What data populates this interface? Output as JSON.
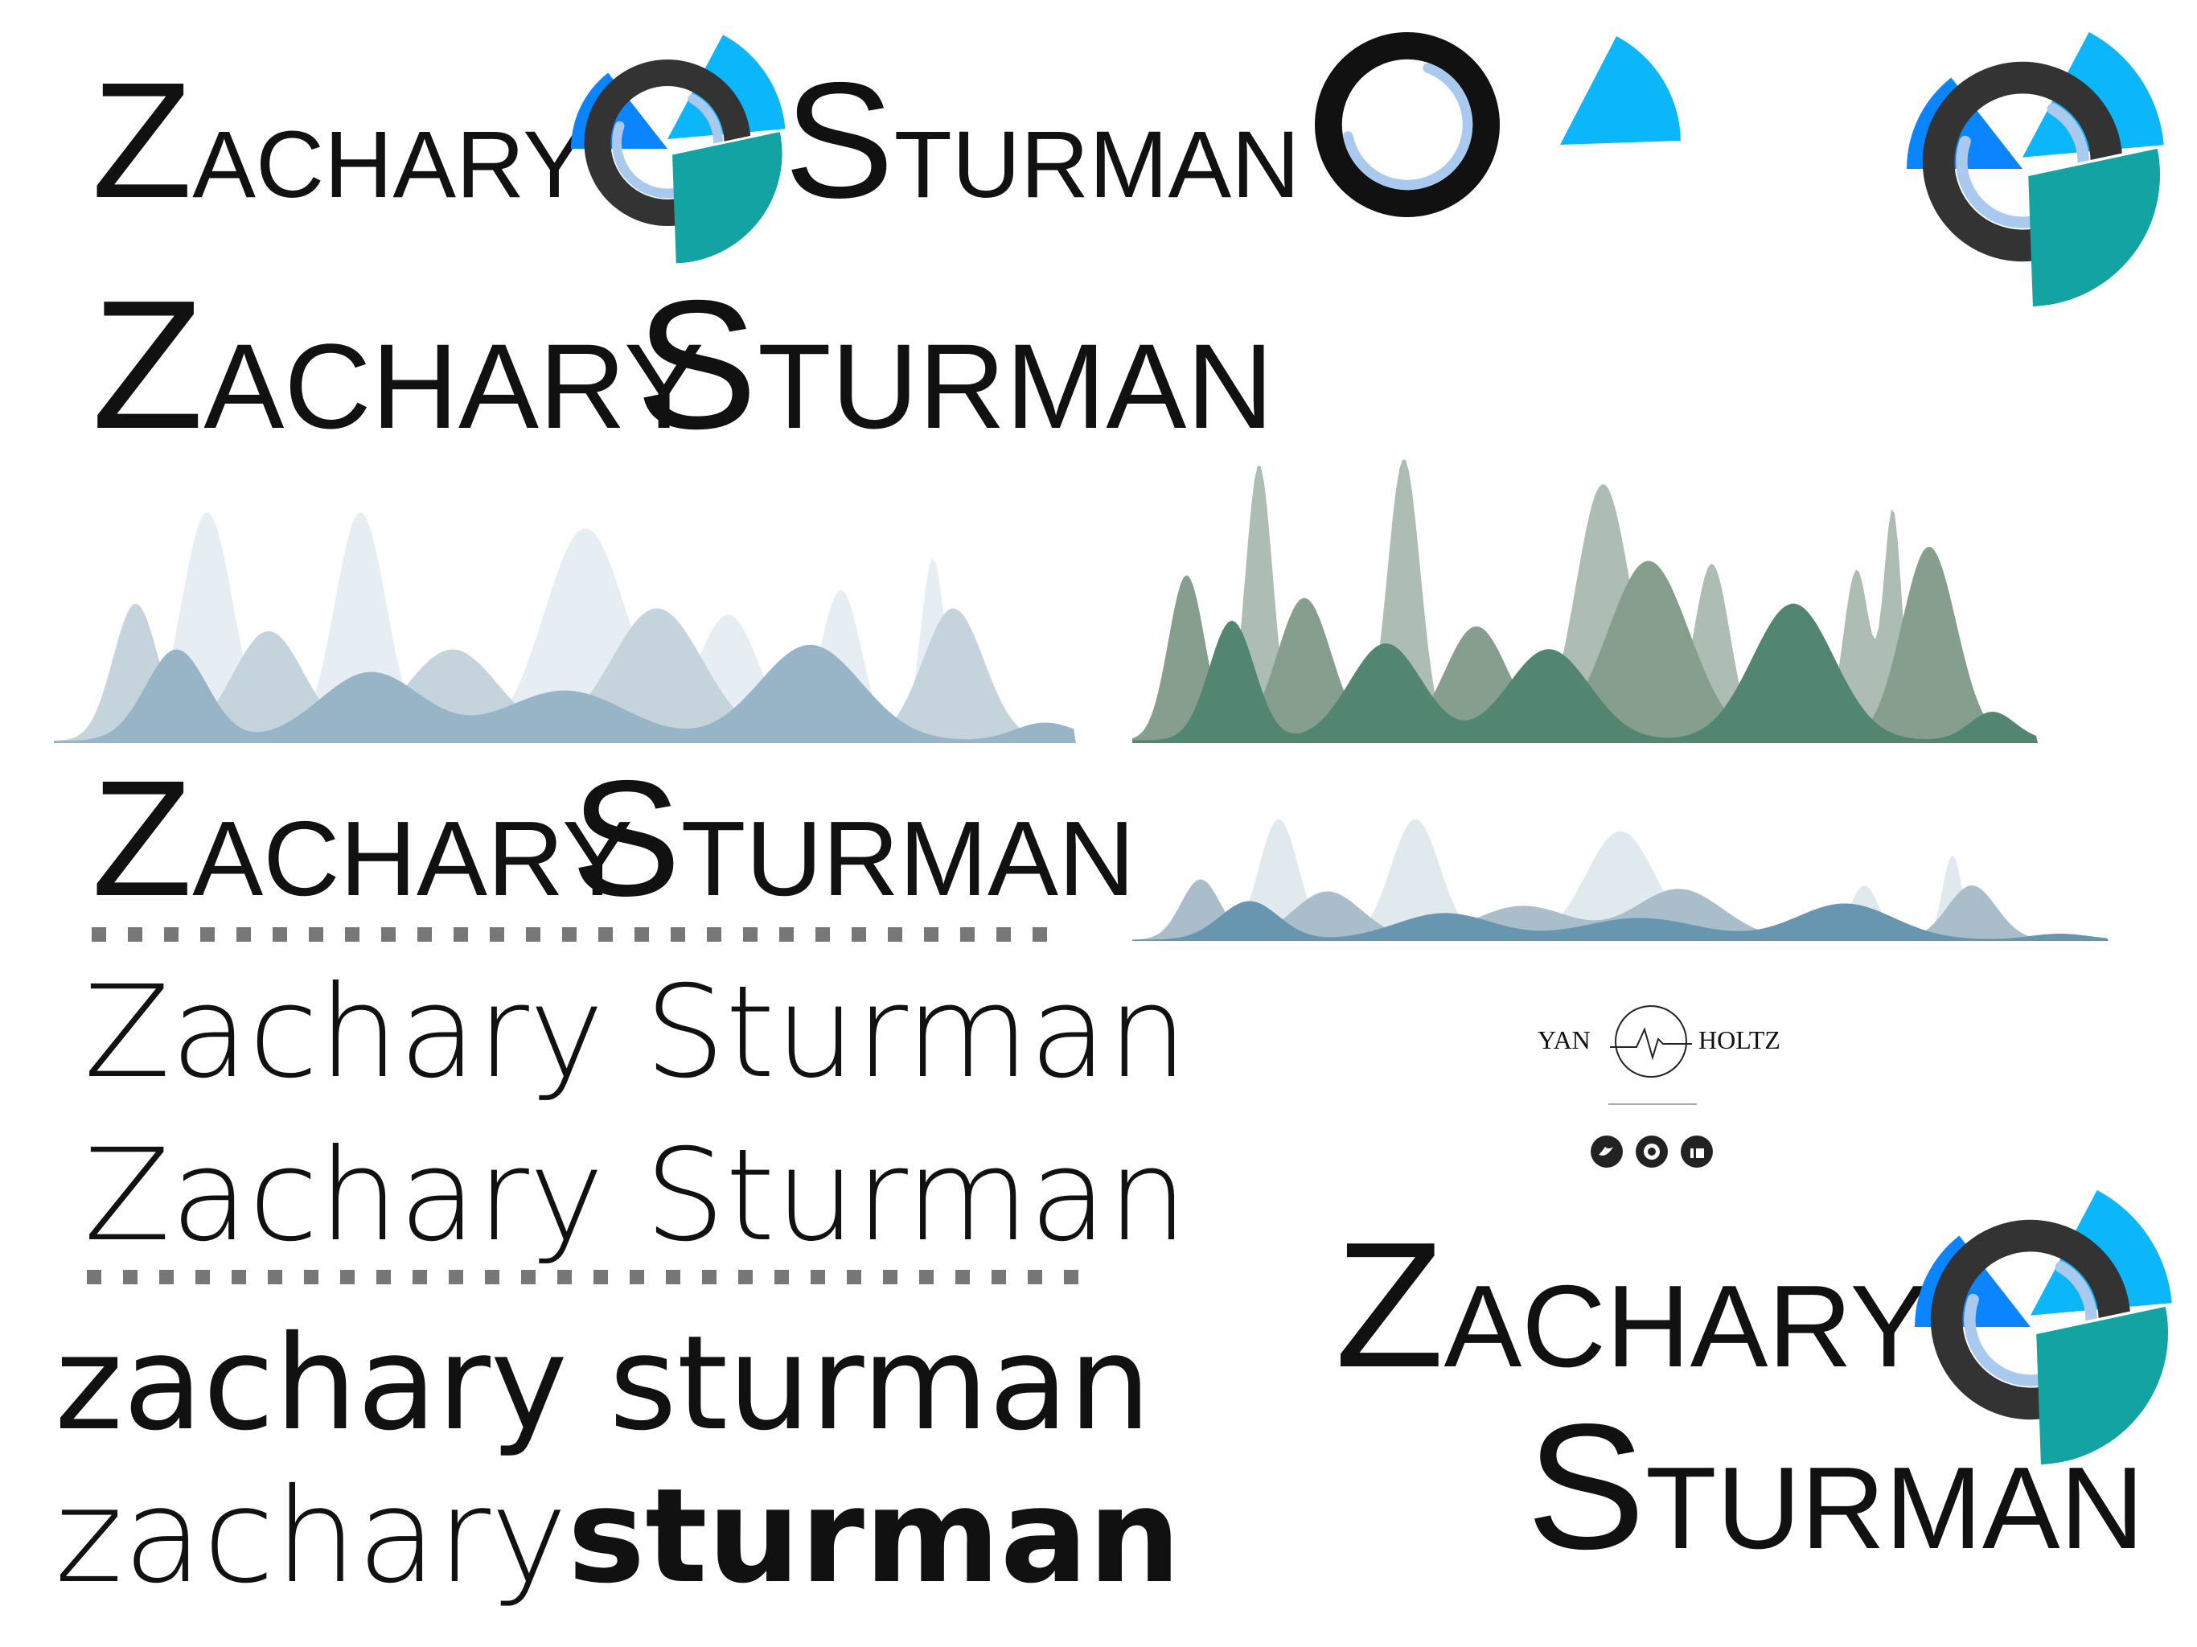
{
  "logos": [
    {
      "first": "ZACHARY",
      "last": "STURMAN"
    },
    {
      "first": "ZACHARY",
      "last": "STURMAN"
    },
    {
      "first": "ZACHARY",
      "last": "STURMAN"
    },
    {
      "first": "ZACHARY",
      "last": "STURMAN"
    }
  ],
  "thin_lines": [
    "Zachary Sturman",
    "Zachary Sturman"
  ],
  "lowercase": "zachary sturman",
  "split": {
    "light": "zachary",
    "bold": "sturman"
  },
  "yan_holtz": {
    "left": "YAN",
    "right": "HOLTZ"
  }
}
